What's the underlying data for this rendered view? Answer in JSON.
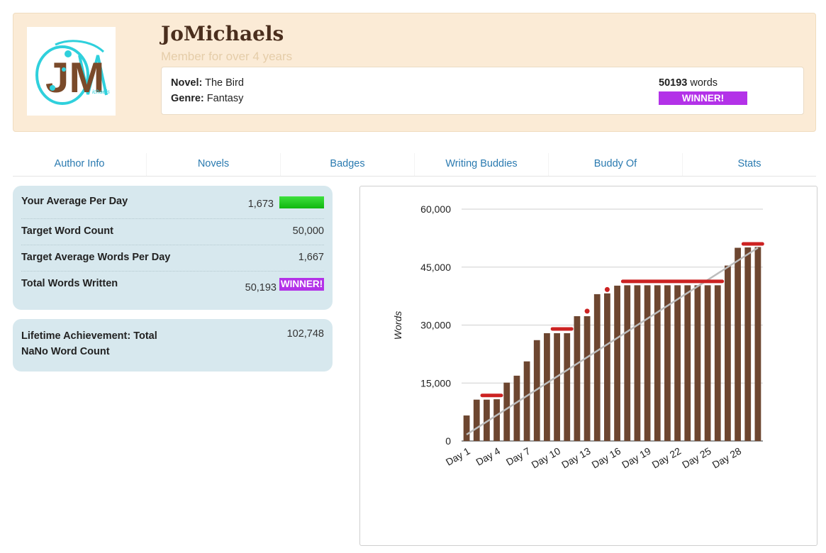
{
  "profile": {
    "username": "JoMichaels",
    "member_since": "Member for over 4 years",
    "avatar": {
      "monogram": "JM",
      "script_text": "ichaels"
    },
    "novel_label": "Novel:",
    "novel_title": "The Bird",
    "genre_label": "Genre:",
    "genre_value": "Fantasy",
    "word_count": "50193",
    "words_suffix": "words",
    "winner_label": "WINNER!"
  },
  "tabs": [
    "Author Info",
    "Novels",
    "Badges",
    "Writing Buddies",
    "Buddy Of",
    "Stats"
  ],
  "stats": {
    "avg_label": "Your Average Per Day",
    "avg_value": "1,673",
    "avg_bar_color": "#22cc22",
    "target_label": "Target Word Count",
    "target_value": "50,000",
    "target_avg_label": "Target Average Words Per Day",
    "target_avg_value": "1,667",
    "total_label": "Total Words Written",
    "total_value": "50,193",
    "winner_label": "WINNER!"
  },
  "lifetime": {
    "label_line1": "Lifetime Achievement: Total",
    "label_line2": "NaNo Word Count",
    "value": "102,748"
  },
  "colors": {
    "bar": "#6d4630",
    "target_line": "#bdbdbd",
    "goal_marker": "#cc2222",
    "winner": "#b332e8",
    "link": "#2a7ab0"
  },
  "chart_data": {
    "type": "bar",
    "ylabel": "Words",
    "ylim": [
      0,
      60000
    ],
    "yticks": [
      0,
      15000,
      30000,
      45000,
      60000
    ],
    "ytick_labels": [
      "0",
      "15,000",
      "30,000",
      "45,000",
      "60,000"
    ],
    "xtick_labels": [
      "Day 1",
      "Day 4",
      "Day 7",
      "Day 10",
      "Day 13",
      "Day 16",
      "Day 19",
      "Day 22",
      "Day 25",
      "Day 28"
    ],
    "series": [
      {
        "values": [
          6600,
          10700,
          10700,
          10800,
          15100,
          16900,
          20600,
          26100,
          27900,
          27900,
          27900,
          32300,
          32300,
          38000,
          38200,
          40200,
          40300,
          40300,
          40300,
          40300,
          40300,
          40300,
          40300,
          40300,
          40300,
          40300,
          45400,
          50000,
          50100,
          50193
        ]
      }
    ],
    "target_line": {
      "start": 1667,
      "end": 50000
    },
    "goal_markers": [
      {
        "from_day": 3,
        "to_day": 4,
        "y": 11800
      },
      {
        "from_day": 10,
        "to_day": 11,
        "y": 29000
      },
      {
        "from_day": 13,
        "to_day": 13,
        "y": 33600
      },
      {
        "from_day": 15,
        "to_day": 15,
        "y": 39200
      },
      {
        "from_day": 17,
        "to_day": 26,
        "y": 41300
      },
      {
        "from_day": 29,
        "to_day": 30,
        "y": 51000
      }
    ]
  }
}
